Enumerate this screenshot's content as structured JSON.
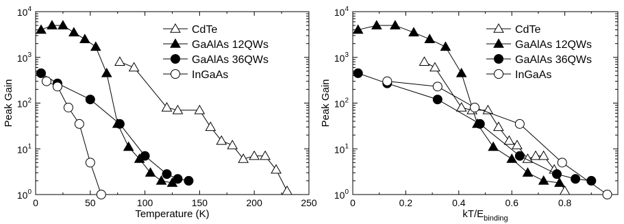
{
  "chart_data": [
    {
      "type": "scatter",
      "xlabel": "Temperature (K)",
      "ylabel": "Peak Gain",
      "xlim": [
        0,
        250
      ],
      "ylim": [
        1,
        10000
      ],
      "yscale": "log",
      "xticks": [
        "0",
        "50",
        "100",
        "150",
        "200",
        "250"
      ],
      "yticks": [
        {
          "base": "10",
          "exp": "0"
        },
        {
          "base": "10",
          "exp": "1"
        },
        {
          "base": "10",
          "exp": "2"
        },
        {
          "base": "10",
          "exp": "3"
        },
        {
          "base": "10",
          "exp": "4"
        }
      ],
      "legend": "top-right",
      "series": [
        {
          "name": "CdTe",
          "marker": "triangle-open",
          "x": [
            77,
            90,
            120,
            130,
            150,
            160,
            170,
            180,
            190,
            200,
            210,
            220,
            230
          ],
          "y": [
            800,
            600,
            80,
            70,
            70,
            30,
            15,
            12,
            6,
            7,
            7,
            3.5,
            1.2
          ]
        },
        {
          "name": "GaAlAs 12QWs",
          "marker": "triangle-filled",
          "x": [
            5,
            15,
            25,
            35,
            45,
            55,
            65,
            75,
            85,
            95,
            105,
            115,
            125
          ],
          "y": [
            4000,
            5000,
            5000,
            3500,
            2500,
            1700,
            450,
            35,
            11,
            6,
            3,
            2,
            1.8
          ]
        },
        {
          "name": "GaAlAs 36QWs",
          "marker": "circle-filled",
          "x": [
            5,
            20,
            50,
            77,
            100,
            120,
            130,
            140
          ],
          "y": [
            450,
            270,
            120,
            35,
            7,
            2.8,
            2.2,
            2
          ]
        },
        {
          "name": "InGaAs",
          "marker": "circle-open",
          "x": [
            10,
            20,
            30,
            40,
            50,
            60
          ],
          "y": [
            300,
            230,
            80,
            35,
            5,
            1
          ]
        }
      ]
    },
    {
      "type": "scatter",
      "xlabel": "kT/E",
      "xlabel_sub": "binding",
      "ylabel": "Peak Gain",
      "xlim": [
        0,
        1.0
      ],
      "ylim": [
        1,
        10000
      ],
      "yscale": "log",
      "xticks": [
        "0",
        "0.2",
        "0.4",
        "0.6",
        "0.8"
      ],
      "yticks": [
        {
          "base": "10",
          "exp": "0"
        },
        {
          "base": "10",
          "exp": "1"
        },
        {
          "base": "10",
          "exp": "2"
        },
        {
          "base": "10",
          "exp": "3"
        },
        {
          "base": "10",
          "exp": "4"
        }
      ],
      "legend": "top-right",
      "series": [
        {
          "name": "CdTe",
          "marker": "triangle-open",
          "x": [
            0.27,
            0.31,
            0.41,
            0.45,
            0.51,
            0.55,
            0.59,
            0.62,
            0.66,
            0.69,
            0.72,
            0.76,
            0.8
          ],
          "y": [
            800,
            600,
            80,
            70,
            70,
            30,
            15,
            12,
            6,
            7,
            7,
            3.5,
            1.2
          ]
        },
        {
          "name": "GaAlAs 12QWs",
          "marker": "triangle-filled",
          "x": [
            0.02,
            0.09,
            0.16,
            0.23,
            0.29,
            0.35,
            0.41,
            0.47,
            0.53,
            0.6,
            0.66,
            0.72,
            0.78
          ],
          "y": [
            4000,
            5000,
            5000,
            3500,
            2500,
            1700,
            450,
            35,
            11,
            6,
            3,
            2,
            1.8
          ]
        },
        {
          "name": "GaAlAs 36QWs",
          "marker": "circle-filled",
          "x": [
            0.02,
            0.13,
            0.32,
            0.48,
            0.63,
            0.77,
            0.84,
            0.9
          ],
          "y": [
            450,
            270,
            120,
            35,
            7,
            2.8,
            2.2,
            2
          ]
        },
        {
          "name": "InGaAs",
          "marker": "circle-open",
          "x": [
            0.13,
            0.32,
            0.46,
            0.63,
            0.79,
            0.96
          ],
          "y": [
            300,
            230,
            80,
            35,
            5,
            1
          ]
        }
      ]
    }
  ]
}
